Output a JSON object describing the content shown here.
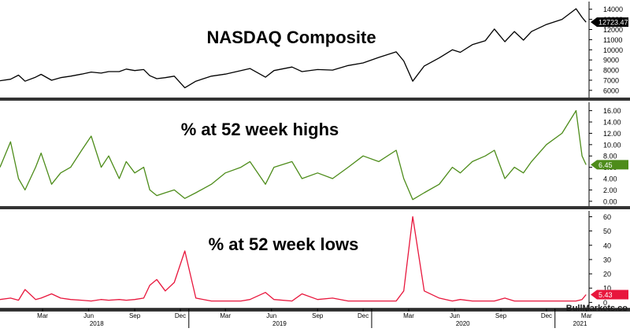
{
  "chart_data": [
    {
      "type": "line",
      "title": "NASDAQ Composite",
      "color": "#000000",
      "last_value_label": "12723.47",
      "last_value": 12723.47,
      "y_ticks": [
        6000,
        7000,
        8000,
        9000,
        10000,
        11000,
        12000,
        13000,
        14000
      ],
      "ylim": [
        5600,
        14600
      ],
      "x_axis": "shared",
      "series": [
        {
          "x": [
            "2017-12-20",
            "2018-01-10",
            "2018-01-26",
            "2018-02-08",
            "2018-03-01",
            "2018-03-12",
            "2018-04-02",
            "2018-04-20",
            "2018-05-10",
            "2018-06-01",
            "2018-06-20",
            "2018-07-10",
            "2018-07-25",
            "2018-08-15",
            "2018-08-29",
            "2018-09-15",
            "2018-10-03",
            "2018-10-15",
            "2018-10-29",
            "2018-11-15",
            "2018-12-03",
            "2018-12-24",
            "2019-01-15",
            "2019-02-15",
            "2019-03-15",
            "2019-04-15",
            "2019-05-03",
            "2019-06-03",
            "2019-06-20",
            "2019-07-26",
            "2019-08-15",
            "2019-09-15",
            "2019-10-15",
            "2019-11-15",
            "2019-12-15",
            "2020-01-15",
            "2020-02-19",
            "2020-03-05",
            "2020-03-23",
            "2020-04-15",
            "2020-05-15",
            "2020-06-10",
            "2020-06-26",
            "2020-07-20",
            "2020-08-15",
            "2020-09-02",
            "2020-09-23",
            "2020-10-12",
            "2020-10-30",
            "2020-11-15",
            "2020-12-15",
            "2021-01-15",
            "2021-02-12",
            "2021-02-24",
            "2021-03-04"
          ],
          "values": [
            6950,
            7100,
            7500,
            6900,
            7300,
            7580,
            7000,
            7250,
            7400,
            7600,
            7800,
            7700,
            7850,
            7850,
            8100,
            7950,
            8050,
            7450,
            7150,
            7250,
            7400,
            6250,
            6900,
            7400,
            7600,
            7950,
            8150,
            7300,
            7950,
            8300,
            7850,
            8050,
            8000,
            8450,
            8700,
            9250,
            9800,
            8900,
            6900,
            8400,
            9200,
            10000,
            9750,
            10500,
            10900,
            12050,
            10800,
            11800,
            10950,
            11800,
            12500,
            13000,
            14050,
            13200,
            12723.47
          ]
        }
      ]
    },
    {
      "type": "line",
      "title": "% at 52 week highs",
      "color": "#4d8c1a",
      "last_value_label": "6.45",
      "last_value": 6.45,
      "y_ticks": [
        "0.00",
        "2.00",
        "4.00",
        "6.00",
        "8.00",
        "10.00",
        "12.00",
        "14.00",
        "16.00"
      ],
      "ylim": [
        -0.3,
        17.2
      ],
      "x_axis": "shared",
      "series": [
        {
          "x": [
            "2017-12-20",
            "2018-01-10",
            "2018-01-26",
            "2018-02-08",
            "2018-03-01",
            "2018-03-12",
            "2018-04-02",
            "2018-04-20",
            "2018-05-10",
            "2018-06-01",
            "2018-06-20",
            "2018-07-10",
            "2018-07-25",
            "2018-08-15",
            "2018-08-29",
            "2018-09-15",
            "2018-10-03",
            "2018-10-15",
            "2018-10-29",
            "2018-11-15",
            "2018-12-03",
            "2018-12-24",
            "2019-01-15",
            "2019-02-15",
            "2019-03-15",
            "2019-04-15",
            "2019-05-03",
            "2019-06-03",
            "2019-06-20",
            "2019-07-26",
            "2019-08-15",
            "2019-09-15",
            "2019-10-15",
            "2019-11-15",
            "2019-12-15",
            "2020-01-15",
            "2020-02-19",
            "2020-03-05",
            "2020-03-23",
            "2020-04-15",
            "2020-05-15",
            "2020-06-10",
            "2020-06-26",
            "2020-07-20",
            "2020-08-15",
            "2020-09-02",
            "2020-09-23",
            "2020-10-12",
            "2020-10-30",
            "2020-11-15",
            "2020-12-15",
            "2021-01-15",
            "2021-02-12",
            "2021-02-24",
            "2021-03-04"
          ],
          "values": [
            6,
            10.5,
            4,
            2,
            6,
            8.5,
            3,
            5,
            6,
            9,
            11.5,
            6,
            8,
            4,
            7,
            5,
            6,
            2,
            1,
            1.5,
            2,
            0.5,
            1.5,
            3,
            5,
            6,
            7,
            3,
            6,
            7,
            4,
            5,
            4,
            6,
            8,
            7,
            9,
            4,
            0.3,
            1.5,
            3,
            6,
            5,
            7,
            8,
            9,
            4,
            6,
            5,
            7,
            10,
            12,
            16,
            8,
            6.45
          ]
        }
      ]
    },
    {
      "type": "line",
      "title": "% at 52 week lows",
      "color": "#e8163c",
      "last_value_label": "5.43",
      "last_value": 5.43,
      "y_ticks": [
        0,
        10,
        20,
        30,
        40,
        50,
        60
      ],
      "ylim": [
        -2,
        63
      ],
      "x_axis": "shared",
      "series": [
        {
          "x": [
            "2017-12-20",
            "2018-01-10",
            "2018-01-26",
            "2018-02-08",
            "2018-03-01",
            "2018-03-12",
            "2018-04-02",
            "2018-04-20",
            "2018-05-10",
            "2018-06-01",
            "2018-06-20",
            "2018-07-10",
            "2018-07-25",
            "2018-08-15",
            "2018-08-29",
            "2018-09-15",
            "2018-10-03",
            "2018-10-15",
            "2018-10-29",
            "2018-11-15",
            "2018-12-03",
            "2018-12-24",
            "2019-01-15",
            "2019-02-15",
            "2019-03-15",
            "2019-04-15",
            "2019-05-03",
            "2019-06-03",
            "2019-06-20",
            "2019-07-26",
            "2019-08-15",
            "2019-09-15",
            "2019-10-15",
            "2019-11-15",
            "2019-12-15",
            "2020-01-15",
            "2020-02-19",
            "2020-03-05",
            "2020-03-23",
            "2020-04-15",
            "2020-05-15",
            "2020-06-10",
            "2020-06-26",
            "2020-07-20",
            "2020-08-15",
            "2020-09-02",
            "2020-09-23",
            "2020-10-12",
            "2020-10-30",
            "2020-11-15",
            "2020-12-15",
            "2021-01-15",
            "2021-02-12",
            "2021-02-24",
            "2021-03-04"
          ],
          "values": [
            2,
            3,
            1.5,
            9,
            2,
            3,
            6,
            3,
            2,
            1.5,
            1,
            2,
            1.5,
            2,
            1.5,
            2,
            3,
            12,
            16,
            8,
            14,
            36,
            3,
            1,
            1,
            1,
            2,
            7,
            2,
            1,
            6,
            2,
            3,
            1,
            1,
            1,
            1,
            8,
            60,
            8,
            3,
            1,
            2,
            1,
            1,
            1,
            3,
            1,
            1,
            1,
            1,
            1,
            1,
            2,
            5.43
          ]
        }
      ]
    }
  ],
  "x_axis": {
    "domain": [
      "2017-12-20",
      "2021-03-10"
    ],
    "month_ticks": [
      {
        "date": "2018-03-15",
        "label": "Mar"
      },
      {
        "date": "2018-06-15",
        "label": "Jun"
      },
      {
        "date": "2018-09-15",
        "label": "Sep"
      },
      {
        "date": "2018-12-15",
        "label": "Dec"
      },
      {
        "date": "2019-03-15",
        "label": "Mar"
      },
      {
        "date": "2019-06-15",
        "label": "Jun"
      },
      {
        "date": "2019-09-15",
        "label": "Sep"
      },
      {
        "date": "2019-12-15",
        "label": "Dec"
      },
      {
        "date": "2020-03-15",
        "label": "Mar"
      },
      {
        "date": "2020-06-15",
        "label": "Jun"
      },
      {
        "date": "2020-09-15",
        "label": "Sep"
      },
      {
        "date": "2020-12-15",
        "label": "Dec"
      },
      {
        "date": "2021-03-05",
        "label": "Mar"
      }
    ],
    "year_labels": [
      {
        "date": "2018-07-01",
        "label": "2018"
      },
      {
        "date": "2019-07-01",
        "label": "2019"
      },
      {
        "date": "2020-07-01",
        "label": "2020"
      },
      {
        "date": "2021-02-20",
        "label": "2021"
      }
    ]
  },
  "watermark": "BullMarkets.co"
}
